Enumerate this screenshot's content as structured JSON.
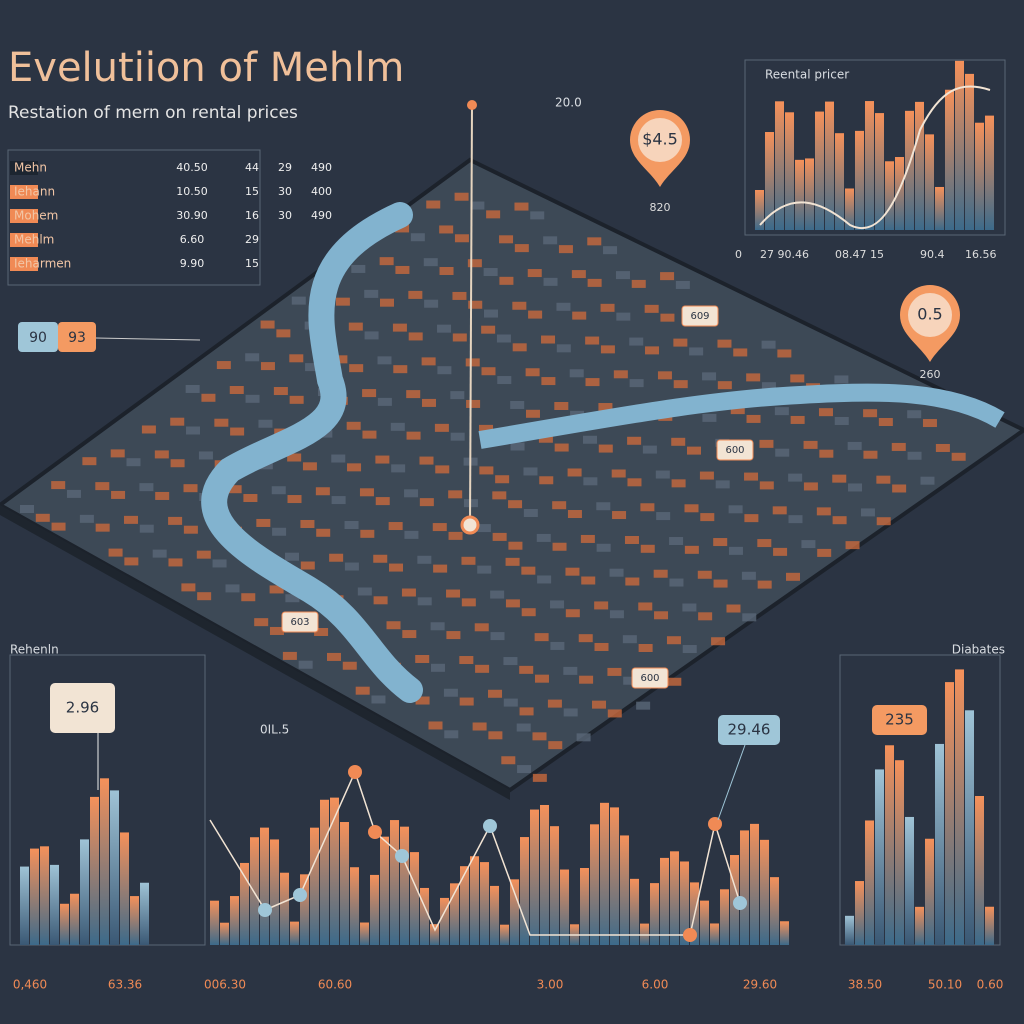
{
  "header": {
    "title": "Evelutiion of Mehlm",
    "subtitle": "Restation of mern on rental prices"
  },
  "legend": {
    "rows": [
      {
        "name": "Mehn",
        "values": [
          "40.50",
          "44",
          "29",
          "490"
        ]
      },
      {
        "name": "Iehann",
        "values": [
          "10.50",
          "15",
          "30",
          "400"
        ]
      },
      {
        "name": "Mohem",
        "values": [
          "30.90",
          "16",
          "30",
          "490"
        ]
      },
      {
        "name": "Mehlm",
        "values": [
          "6.60",
          "29"
        ]
      },
      {
        "name": "Ieharmen",
        "values": [
          "9.90",
          "15"
        ]
      }
    ]
  },
  "top_chart": {
    "title": "Reental pricer",
    "axis_labels": [
      "0",
      "27 90.46",
      "08.47 15",
      "90.4",
      "16.56"
    ]
  },
  "pins": [
    {
      "label": "$4.5",
      "caption": "820"
    },
    {
      "label": "0.5",
      "caption": "260"
    }
  ],
  "map": {
    "marker_label": "20.0",
    "side_tag": [
      "90",
      "93"
    ],
    "labels": [
      "609",
      "600",
      "603",
      "600"
    ]
  },
  "bottom_left": {
    "title": "Rehenln",
    "callout": "2.96",
    "axis_labels": [
      "0,460",
      "63.36"
    ]
  },
  "bottom_middle": {
    "note": "0IL.5",
    "callout": "29.46",
    "axis_labels": [
      "006.30",
      "60.60",
      "3.00",
      "6.00",
      "29.60"
    ]
  },
  "bottom_right": {
    "title": "Diabates",
    "callout": "235",
    "axis_labels": [
      "38.50",
      "50.10",
      "0.60"
    ]
  }
}
